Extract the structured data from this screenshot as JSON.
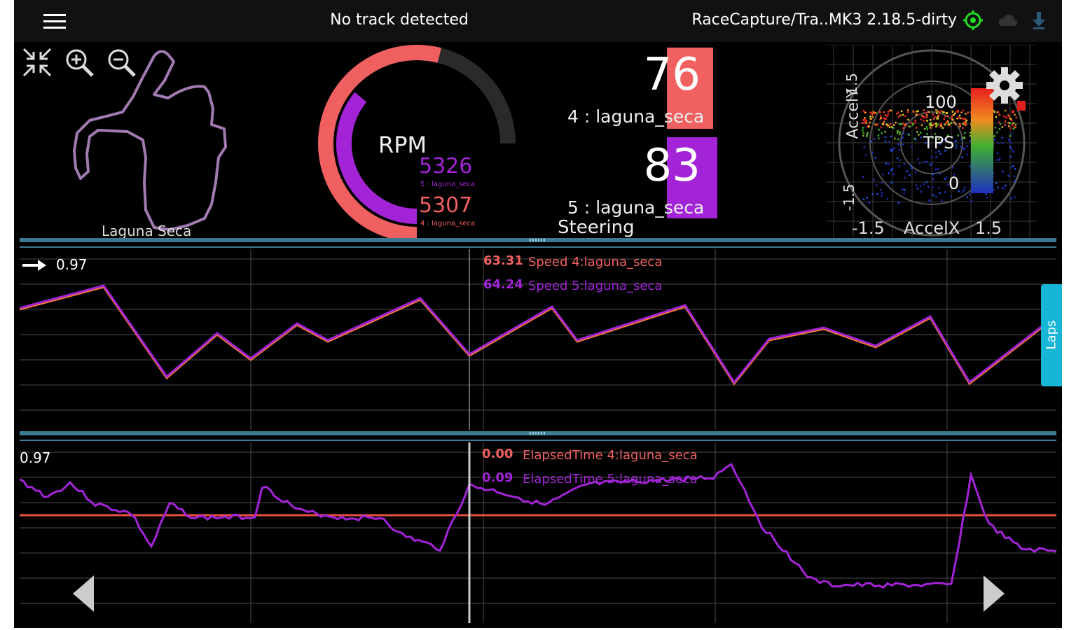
{
  "status_bar": {
    "menu_icon": "hamburger-menu-icon",
    "track_status": "No track detected",
    "device_name": "RaceCapture/Tra..MK3 2.18.5-dirty",
    "icons": [
      "gps-target-icon",
      "cloud-icon",
      "download-icon"
    ],
    "gps_color": "#22dd22"
  },
  "toolbar": {
    "icons": [
      "collapse-icon",
      "zoom-in-icon",
      "zoom-out-icon"
    ]
  },
  "track_map": {
    "label": "Laguna Seca",
    "line_color": "#a07ab0"
  },
  "rpm_gauge": {
    "label": "RPM",
    "max": 8000,
    "values": [
      {
        "value": "5326",
        "sub_label": "5 : laguna_seca",
        "color": "#a224d6",
        "fraction": 0.48
      },
      {
        "value": "5307",
        "sub_label": "4 : laguna_seca",
        "color": "#f06060",
        "fraction": 0.72
      }
    ]
  },
  "digital_gauges": [
    {
      "value": "76",
      "label": "4 : laguna_seca",
      "color": "#f06060"
    },
    {
      "value": "83",
      "label": "5 : laguna_seca",
      "color": "#a224d6"
    }
  ],
  "steering_label": "Steering",
  "gsum": {
    "y_axis_label": "AccelY",
    "x_axis_label": "AccelX",
    "y_ticks": [
      "1.5",
      "-1.5"
    ],
    "x_ticks": [
      "-1.5",
      "1.5"
    ],
    "tps_label": "TPS",
    "tps_ticks": [
      "100",
      "0"
    ],
    "settings_icon": "gear-icon"
  },
  "chart_speed": {
    "cursor_value": "0.97",
    "series": [
      {
        "value": "63.31",
        "name": "Speed 4:laguna_seca",
        "color": "#f06060"
      },
      {
        "value": "64.24",
        "name": "Speed 5:laguna_seca",
        "color": "#a224d6"
      }
    ]
  },
  "chart_elapsed": {
    "cursor_value": "0.97",
    "series": [
      {
        "value": "0.00",
        "name": "ElapsedTime 4:laguna_seca",
        "color": "#f06060"
      },
      {
        "value": "0.09",
        "name": "ElapsedTime 5:laguna_seca",
        "color": "#a224d6"
      }
    ]
  },
  "laps_tab": "Laps",
  "nav": {
    "prev": "left-arrow-icon",
    "next": "right-arrow-icon"
  }
}
